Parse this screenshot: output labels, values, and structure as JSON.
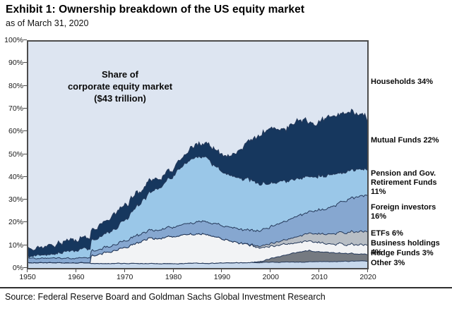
{
  "header": {
    "title": "Exhibit 1: Ownership breakdown of the US equity market",
    "subtitle": "as of March 31, 2020"
  },
  "annotation": {
    "line1": "Share of",
    "line2": "corporate equity market",
    "line3": "($43 trillion)"
  },
  "source": "Source: Federal Reserve Board and Goldman Sachs Global Investment Research",
  "chart_data": {
    "type": "area",
    "stacked": true,
    "title": "Share of corporate equity market ($43 trillion)",
    "xlabel": "",
    "ylabel": "",
    "ylim": [
      0,
      100
    ],
    "xlim": [
      1950,
      2020
    ],
    "grid": false,
    "legend_position": "right-labels",
    "y_ticks": [
      "0%",
      "10%",
      "20%",
      "30%",
      "40%",
      "50%",
      "60%",
      "70%",
      "80%",
      "90%",
      "100%"
    ],
    "x_ticks": [
      "1950",
      "1960",
      "1970",
      "1980",
      "1990",
      "2000",
      "2010",
      "2020"
    ],
    "x": [
      1950,
      1952,
      1954,
      1956,
      1958,
      1960,
      1962,
      1962.8,
      1963,
      1964,
      1966,
      1968,
      1970,
      1972,
      1974,
      1975,
      1976,
      1978,
      1980,
      1982,
      1984,
      1986,
      1987,
      1988,
      1990,
      1992,
      1994,
      1996,
      1998,
      2000,
      2002,
      2004,
      2006,
      2007,
      2008,
      2009,
      2010,
      2012,
      2014,
      2016,
      2017,
      2018,
      2019,
      2020
    ],
    "series": [
      {
        "name": "other",
        "label": "Other 3%",
        "color": "#c7d8ec",
        "share_2020": 3,
        "values": [
          2.3,
          2.3,
          2.3,
          2.3,
          2.3,
          2.3,
          2.3,
          2.1,
          2.0,
          2.0,
          2.0,
          2.0,
          2.0,
          1.9,
          1.9,
          1.9,
          1.9,
          1.9,
          1.9,
          2.0,
          2.0,
          2.1,
          2.1,
          2.1,
          2.2,
          2.3,
          2.3,
          2.4,
          2.4,
          2.5,
          2.5,
          2.6,
          2.6,
          2.6,
          2.7,
          2.7,
          2.8,
          2.8,
          2.9,
          2.9,
          3.0,
          3.0,
          3.0,
          3.0
        ]
      },
      {
        "name": "hedge-funds",
        "label": "Hedge Funds 3%",
        "color": "#757a81",
        "share_2020": 3,
        "values": [
          0,
          0,
          0,
          0,
          0,
          0,
          0,
          0,
          0,
          0,
          0,
          0,
          0,
          0,
          0,
          0,
          0,
          0,
          0,
          0,
          0,
          0,
          0,
          0,
          0,
          0,
          0,
          0,
          0.5,
          1.5,
          2.5,
          3.5,
          4.5,
          4.8,
          5.0,
          4.5,
          4.3,
          4.0,
          3.8,
          3.5,
          3.4,
          3.3,
          3.1,
          3.0
        ]
      },
      {
        "name": "business-holdings",
        "label": "Business holdings 4%",
        "color": "#f2f3f5",
        "share_2020": 4,
        "values": [
          0,
          0,
          0,
          0,
          0,
          0,
          0,
          0,
          3.5,
          4.0,
          4.8,
          5.8,
          7.0,
          8.5,
          10.0,
          11.5,
          11.0,
          11.5,
          12.0,
          12.5,
          13.0,
          13.2,
          12.8,
          12.2,
          10.5,
          9.5,
          8.5,
          7.5,
          6.3,
          5.2,
          4.8,
          4.5,
          4.2,
          4.2,
          4.5,
          4.4,
          4.2,
          4.0,
          4.0,
          4.0,
          4.0,
          4.0,
          4.0,
          4.0
        ]
      },
      {
        "name": "etfs",
        "label": "ETFs 6%",
        "color": "#b8bec5",
        "share_2020": 6,
        "values": [
          0,
          0,
          0,
          0,
          0,
          0,
          0,
          0,
          0,
          0,
          0,
          0,
          0,
          0,
          0,
          0,
          0,
          0,
          0,
          0,
          0,
          0,
          0,
          0,
          0,
          0,
          0,
          0.3,
          0.7,
          1.2,
          1.6,
          2.2,
          2.8,
          3.0,
          3.4,
          3.6,
          3.8,
          4.3,
          4.8,
          5.3,
          5.5,
          5.7,
          5.9,
          6.0
        ]
      },
      {
        "name": "foreign-investors",
        "label": "Foreign investors 16%",
        "color": "#86a7d0",
        "share_2020": 16,
        "values": [
          2.0,
          2.0,
          2.0,
          2.0,
          2.0,
          2.1,
          2.1,
          2.1,
          2.1,
          2.2,
          2.3,
          2.5,
          2.8,
          3.2,
          3.4,
          3.5,
          3.7,
          4.0,
          4.2,
          4.5,
          5.0,
          5.5,
          5.8,
          5.8,
          6.0,
          6.0,
          6.2,
          6.5,
          7.0,
          7.5,
          8.0,
          8.5,
          9.0,
          9.3,
          9.5,
          10.0,
          10.5,
          11.5,
          13.0,
          14.5,
          15.0,
          15.5,
          15.8,
          16.0
        ]
      },
      {
        "name": "pension-retirement-funds",
        "label": "Pension and Gov. Retirement Funds 11%",
        "color": "#9ac7e8",
        "share_2020": 11,
        "values": [
          1.0,
          1.3,
          1.7,
          2.2,
          2.8,
          3.5,
          4.2,
          4.4,
          4.5,
          5.0,
          6.0,
          7.2,
          9.0,
          12.0,
          15.0,
          16.5,
          17.5,
          20.0,
          23.0,
          26.0,
          28.5,
          29.0,
          28.0,
          26.0,
          24.0,
          23.0,
          22.5,
          22.0,
          21.0,
          19.5,
          18.0,
          17.0,
          16.2,
          16.0,
          15.0,
          15.0,
          15.0,
          14.5,
          13.5,
          12.5,
          12.2,
          12.0,
          11.5,
          11.0
        ]
      },
      {
        "name": "mutual-funds",
        "label": "Mutual Funds 22%",
        "color": "#16375e",
        "share_2020": 22,
        "values": [
          3.5,
          3.0,
          3.6,
          4.3,
          4.7,
          5.0,
          5.2,
          5.0,
          5.0,
          5.3,
          6.0,
          7.0,
          6.5,
          6.5,
          5.0,
          4.7,
          4.5,
          3.8,
          3.5,
          4.0,
          5.0,
          6.5,
          7.0,
          6.5,
          7.5,
          9.5,
          13.5,
          17.0,
          21.0,
          24.0,
          22.5,
          24.5,
          25.5,
          26.0,
          23.5,
          23.0,
          24.5,
          25.5,
          25.5,
          25.5,
          26.0,
          23.5,
          25.0,
          22.0
        ]
      }
    ],
    "background_series": {
      "name": "households",
      "label": "Households 34%",
      "color": "#dde5f1",
      "share_2020": 34,
      "note": "remainder to 100%"
    }
  },
  "legend": [
    {
      "name": "households",
      "label": "Households 34%"
    },
    {
      "name": "mutual-funds",
      "label": "Mutual Funds 22%"
    },
    {
      "name": "pension-retirement-funds",
      "label": "Pension and Gov. Retirement Funds 11%"
    },
    {
      "name": "foreign-investors",
      "label": "Foreign investors 16%"
    },
    {
      "name": "etfs",
      "label": "ETFs 6%"
    },
    {
      "name": "business-holdings",
      "label": "Business holdings 4%"
    },
    {
      "name": "hedge-funds",
      "label": "Hedge Funds 3%"
    },
    {
      "name": "other",
      "label": "Other 3%"
    }
  ]
}
